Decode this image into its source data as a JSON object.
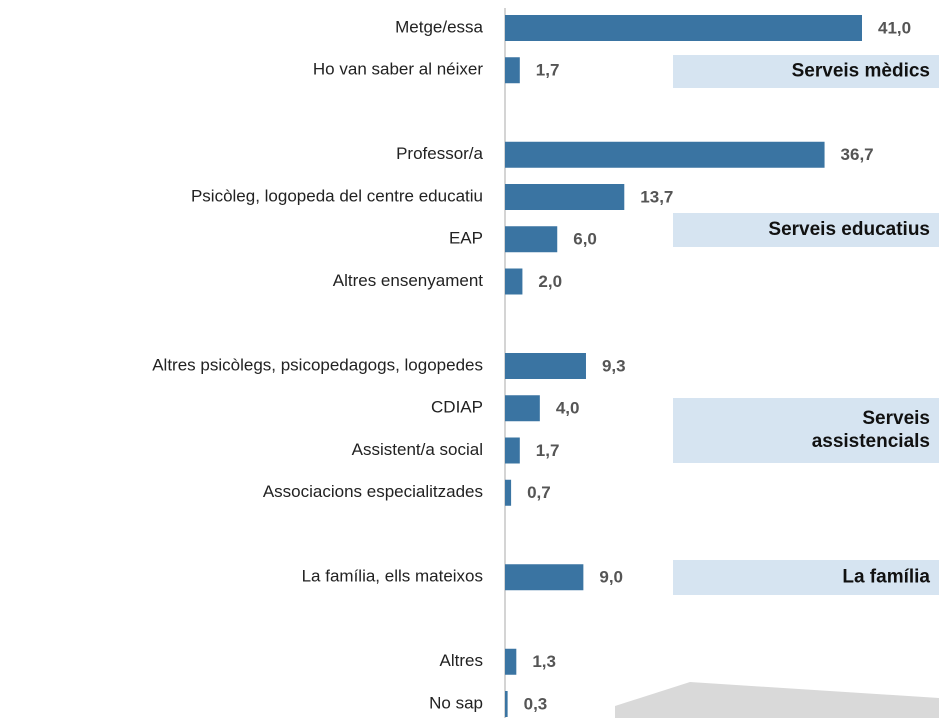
{
  "chart_data": {
    "type": "hbar",
    "categories": [
      "Metge/essa",
      "Ho van saber al néixer",
      null,
      "Professor/a",
      "Psicòleg, logopeda del centre educatiu",
      "EAP",
      "Altres ensenyament",
      null,
      "Altres psicòlegs, psicopedagogs, logopedes",
      "CDIAP",
      "Assistent/a social",
      "Associacions especialitzades",
      null,
      "La família, ells mateixos",
      null,
      "Altres",
      "No sap"
    ],
    "values": [
      41.0,
      1.7,
      null,
      36.7,
      13.7,
      6.0,
      2.0,
      null,
      9.3,
      4.0,
      1.7,
      0.7,
      null,
      9.0,
      null,
      1.3,
      0.3
    ],
    "value_labels": [
      "41,0",
      "1,7",
      null,
      "36,7",
      "13,7",
      "6,0",
      "2,0",
      null,
      "9,3",
      "4,0",
      "1,7",
      "0,7",
      null,
      "9,0",
      null,
      "1,3",
      "0,3"
    ],
    "color": "#3a74a2",
    "xlim": [
      0,
      41
    ],
    "annotations": [
      "Serveis mèdics",
      "Serveis educatius",
      "Serveis assistencials",
      "La família"
    ]
  }
}
